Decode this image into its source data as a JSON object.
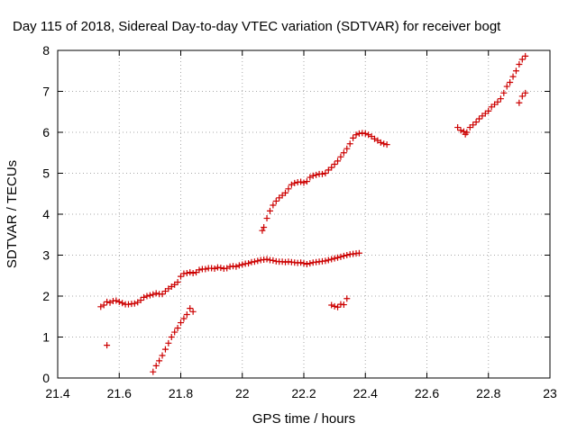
{
  "chart_data": {
    "type": "scatter",
    "title": "Day 115 of 2018, Sidereal Day-to-day VTEC variation (SDTVAR) for receiver bogt",
    "xlabel": "GPS time / hours",
    "ylabel": "SDTVAR / TECUs",
    "xlim": [
      21.4,
      23
    ],
    "ylim": [
      0,
      8
    ],
    "xticks": [
      "21.4",
      "21.6",
      "21.8",
      "22",
      "22.2",
      "22.4",
      "22.6",
      "22.8",
      "23"
    ],
    "yticks": [
      "0",
      "1",
      "2",
      "3",
      "4",
      "5",
      "6",
      "7",
      "8"
    ],
    "grid": true,
    "marker": "+",
    "color": "#cc0000",
    "series": [
      {
        "name": "main-band",
        "points": [
          [
            21.54,
            1.74
          ],
          [
            21.55,
            1.78
          ],
          [
            21.56,
            1.86
          ],
          [
            21.57,
            1.84
          ],
          [
            21.58,
            1.88
          ],
          [
            21.59,
            1.89
          ],
          [
            21.6,
            1.86
          ],
          [
            21.61,
            1.83
          ],
          [
            21.62,
            1.8
          ],
          [
            21.63,
            1.8
          ],
          [
            21.64,
            1.81
          ],
          [
            21.65,
            1.82
          ],
          [
            21.66,
            1.85
          ],
          [
            21.67,
            1.9
          ],
          [
            21.68,
            1.97
          ],
          [
            21.69,
            2.0
          ],
          [
            21.7,
            2.02
          ],
          [
            21.71,
            2.04
          ],
          [
            21.72,
            2.07
          ],
          [
            21.73,
            2.05
          ],
          [
            21.74,
            2.05
          ],
          [
            21.75,
            2.12
          ],
          [
            21.76,
            2.18
          ],
          [
            21.77,
            2.23
          ],
          [
            21.78,
            2.28
          ],
          [
            21.79,
            2.34
          ],
          [
            21.8,
            2.48
          ],
          [
            21.81,
            2.55
          ],
          [
            21.82,
            2.56
          ],
          [
            21.83,
            2.58
          ],
          [
            21.84,
            2.56
          ],
          [
            21.85,
            2.58
          ],
          [
            21.86,
            2.64
          ],
          [
            21.87,
            2.66
          ],
          [
            21.88,
            2.66
          ],
          [
            21.89,
            2.68
          ],
          [
            21.9,
            2.68
          ],
          [
            21.91,
            2.67
          ],
          [
            21.92,
            2.7
          ],
          [
            21.93,
            2.69
          ],
          [
            21.94,
            2.67
          ],
          [
            21.95,
            2.68
          ],
          [
            21.96,
            2.72
          ],
          [
            21.97,
            2.73
          ],
          [
            21.98,
            2.72
          ],
          [
            21.99,
            2.75
          ],
          [
            22.0,
            2.77
          ],
          [
            22.01,
            2.79
          ],
          [
            22.02,
            2.8
          ],
          [
            22.03,
            2.83
          ],
          [
            22.04,
            2.84
          ],
          [
            22.05,
            2.86
          ],
          [
            22.06,
            2.88
          ],
          [
            22.07,
            2.89
          ],
          [
            22.08,
            2.9
          ],
          [
            22.09,
            2.88
          ],
          [
            22.1,
            2.87
          ],
          [
            22.11,
            2.85
          ],
          [
            22.12,
            2.84
          ],
          [
            22.13,
            2.84
          ],
          [
            22.14,
            2.83
          ],
          [
            22.15,
            2.84
          ],
          [
            22.16,
            2.83
          ],
          [
            22.17,
            2.82
          ],
          [
            22.18,
            2.81
          ],
          [
            22.19,
            2.82
          ],
          [
            22.2,
            2.8
          ],
          [
            22.21,
            2.78
          ],
          [
            22.22,
            2.8
          ],
          [
            22.23,
            2.82
          ],
          [
            22.24,
            2.83
          ],
          [
            22.25,
            2.84
          ],
          [
            22.26,
            2.85
          ],
          [
            22.27,
            2.86
          ],
          [
            22.28,
            2.88
          ],
          [
            22.29,
            2.9
          ],
          [
            22.3,
            2.92
          ],
          [
            22.31,
            2.94
          ],
          [
            22.32,
            2.96
          ],
          [
            22.33,
            2.98
          ],
          [
            22.34,
            3.0
          ],
          [
            22.35,
            3.02
          ],
          [
            22.36,
            3.03
          ],
          [
            22.37,
            3.04
          ],
          [
            22.38,
            3.05
          ]
        ]
      },
      {
        "name": "rising-branch-upper",
        "points": [
          [
            22.065,
            3.6
          ],
          [
            22.07,
            3.68
          ],
          [
            22.08,
            3.9
          ],
          [
            22.09,
            4.08
          ],
          [
            22.1,
            4.22
          ],
          [
            22.11,
            4.32
          ],
          [
            22.12,
            4.4
          ],
          [
            22.13,
            4.46
          ],
          [
            22.14,
            4.52
          ],
          [
            22.15,
            4.62
          ],
          [
            22.16,
            4.72
          ],
          [
            22.17,
            4.76
          ],
          [
            22.18,
            4.78
          ],
          [
            22.19,
            4.79
          ],
          [
            22.2,
            4.77
          ],
          [
            22.21,
            4.8
          ],
          [
            22.22,
            4.9
          ],
          [
            22.23,
            4.94
          ],
          [
            22.24,
            4.96
          ],
          [
            22.25,
            4.98
          ],
          [
            22.26,
            4.98
          ],
          [
            22.27,
            5.0
          ],
          [
            22.28,
            5.08
          ],
          [
            22.29,
            5.14
          ],
          [
            22.3,
            5.22
          ],
          [
            22.31,
            5.3
          ],
          [
            22.32,
            5.4
          ],
          [
            22.33,
            5.5
          ],
          [
            22.34,
            5.6
          ],
          [
            22.35,
            5.72
          ],
          [
            22.36,
            5.86
          ],
          [
            22.37,
            5.94
          ],
          [
            22.38,
            5.97
          ],
          [
            22.39,
            5.98
          ],
          [
            22.4,
            5.97
          ],
          [
            22.41,
            5.94
          ],
          [
            22.42,
            5.9
          ],
          [
            22.43,
            5.84
          ],
          [
            22.44,
            5.8
          ],
          [
            22.45,
            5.75
          ],
          [
            22.46,
            5.72
          ],
          [
            22.47,
            5.7
          ]
        ]
      },
      {
        "name": "rising-branch-lower",
        "points": [
          [
            21.71,
            0.15
          ],
          [
            21.72,
            0.3
          ],
          [
            21.73,
            0.42
          ],
          [
            21.74,
            0.55
          ],
          [
            21.75,
            0.7
          ],
          [
            21.76,
            0.85
          ],
          [
            21.77,
            1.0
          ],
          [
            21.78,
            1.12
          ],
          [
            21.79,
            1.22
          ],
          [
            21.8,
            1.35
          ],
          [
            21.81,
            1.45
          ],
          [
            21.82,
            1.55
          ],
          [
            21.83,
            1.7
          ],
          [
            21.84,
            1.62
          ]
        ]
      },
      {
        "name": "isolated",
        "points": [
          [
            21.56,
            0.8
          ],
          [
            22.29,
            1.78
          ],
          [
            22.3,
            1.75
          ],
          [
            22.31,
            1.73
          ],
          [
            22.32,
            1.8
          ],
          [
            22.33,
            1.79
          ],
          [
            22.34,
            1.94
          ]
        ]
      },
      {
        "name": "late-segment",
        "points": [
          [
            22.7,
            6.12
          ],
          [
            22.71,
            6.05
          ],
          [
            22.72,
            6.02
          ],
          [
            22.725,
            5.95
          ],
          [
            22.73,
            6.0
          ],
          [
            22.74,
            6.12
          ],
          [
            22.75,
            6.18
          ],
          [
            22.76,
            6.25
          ],
          [
            22.77,
            6.33
          ],
          [
            22.78,
            6.4
          ],
          [
            22.79,
            6.46
          ],
          [
            22.8,
            6.52
          ],
          [
            22.81,
            6.62
          ],
          [
            22.82,
            6.68
          ],
          [
            22.83,
            6.74
          ],
          [
            22.84,
            6.82
          ],
          [
            22.85,
            6.96
          ],
          [
            22.86,
            7.12
          ],
          [
            22.87,
            7.22
          ],
          [
            22.88,
            7.36
          ],
          [
            22.89,
            7.5
          ],
          [
            22.9,
            7.66
          ],
          [
            22.91,
            7.78
          ],
          [
            22.92,
            7.86
          ],
          [
            22.9,
            6.72
          ],
          [
            22.91,
            6.88
          ],
          [
            22.92,
            6.96
          ]
        ]
      }
    ]
  }
}
